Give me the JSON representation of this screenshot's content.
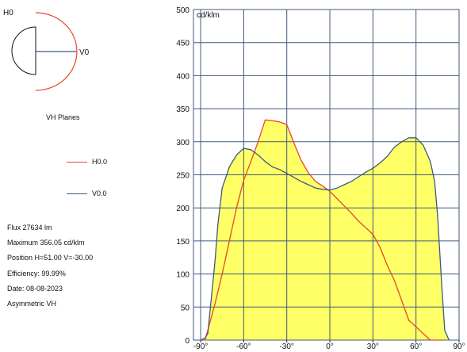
{
  "diagram": {
    "h_label": "H0",
    "v_label": "V0",
    "caption": "VH Planes"
  },
  "legend": [
    {
      "label": "H0.0",
      "color": "#e8462b"
    },
    {
      "label": "V0.0",
      "color": "#3f5a7e"
    }
  ],
  "info": {
    "flux": "Flux 27634  lm",
    "maximum": "Maximum 356.05  cd/klm",
    "position": "Position H=51.00 V=-30.00",
    "efficiency": "Efficiency:  99.99%",
    "date": "Date: 08-08-2023",
    "symmetry": "Asymmetric VH"
  },
  "colors": {
    "fill": "#ffff66",
    "grid": "#3f5a7e",
    "h_series": "#e8462b",
    "v_series": "#3f5a7e"
  },
  "chart_data": {
    "type": "area",
    "title": "",
    "ylabel": "cd/klm",
    "xlabel": "",
    "xlim": [
      -95,
      90
    ],
    "ylim": [
      0,
      500
    ],
    "x_ticks": [
      -90,
      -60,
      -30,
      0,
      30,
      60,
      90
    ],
    "x_tick_labels": [
      "-90°",
      "-60°",
      "-30°",
      "0°",
      "30°",
      "60°",
      "90°"
    ],
    "y_ticks": [
      0,
      50,
      100,
      150,
      200,
      250,
      300,
      350,
      400,
      450,
      500
    ],
    "y_tick_labels": [
      "0",
      "50",
      "100",
      "150",
      "200",
      "250",
      "300",
      "350",
      "400",
      "450",
      "500"
    ],
    "grid": true,
    "series": [
      {
        "name": "H0.0",
        "color": "#e8462b",
        "x": [
          -87,
          -85,
          -80,
          -75,
          -70,
          -65,
          -60,
          -55,
          -50,
          -45,
          -40,
          -35,
          -30,
          -25,
          -20,
          -15,
          -10,
          -5,
          0,
          5,
          10,
          15,
          20,
          25,
          30,
          35,
          40,
          45,
          50,
          55,
          60,
          65,
          70,
          75,
          78
        ],
        "y": [
          0,
          15,
          55,
          100,
          150,
          200,
          242,
          270,
          300,
          333,
          332,
          330,
          326,
          298,
          272,
          253,
          240,
          233,
          225,
          214,
          203,
          192,
          180,
          170,
          160,
          140,
          113,
          90,
          60,
          30,
          20,
          10,
          0,
          0,
          0
        ]
      },
      {
        "name": "V0.0",
        "color": "#3f5a7e",
        "x": [
          -90,
          -87,
          -85,
          -80,
          -78,
          -75,
          -70,
          -65,
          -60,
          -55,
          -50,
          -45,
          -40,
          -35,
          -30,
          -25,
          -20,
          -15,
          -10,
          -5,
          0,
          5,
          10,
          15,
          20,
          25,
          30,
          35,
          40,
          45,
          50,
          55,
          60,
          65,
          70,
          73,
          75,
          78,
          80,
          83
        ],
        "y": [
          0,
          3,
          10,
          120,
          175,
          230,
          262,
          280,
          290,
          288,
          280,
          270,
          262,
          258,
          252,
          246,
          240,
          235,
          230,
          228,
          227,
          230,
          235,
          240,
          247,
          254,
          260,
          268,
          278,
          292,
          300,
          306,
          306,
          295,
          270,
          240,
          190,
          80,
          15,
          0
        ]
      }
    ]
  }
}
